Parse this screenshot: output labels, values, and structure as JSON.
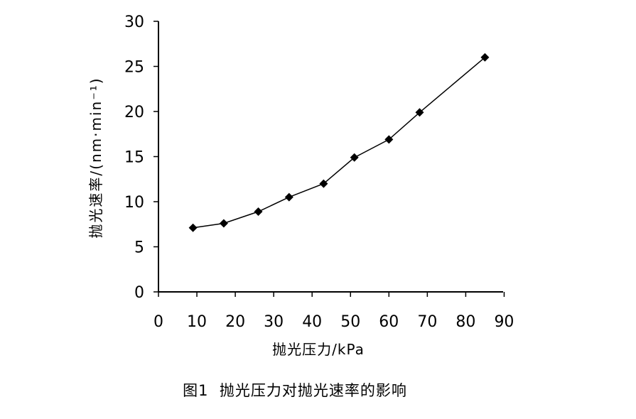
{
  "chart_data": {
    "type": "line",
    "x": [
      9,
      17,
      26,
      34,
      43,
      51,
      60,
      68,
      85
    ],
    "series": [
      {
        "values": [
          7.1,
          7.6,
          8.9,
          10.5,
          12.0,
          14.9,
          16.9,
          19.9,
          26.0
        ]
      }
    ],
    "xlabel": "抛光压力/kPa",
    "ylabel": "抛光速率/(nm·min⁻¹)",
    "xlim": [
      0,
      90
    ],
    "ylim": [
      0,
      30
    ],
    "xticks": [
      0,
      10,
      20,
      30,
      40,
      50,
      60,
      70,
      80,
      90
    ],
    "yticks": [
      0,
      5,
      10,
      15,
      20,
      25,
      30
    ],
    "marker": "diamond",
    "grid": false,
    "line_color": "#000000"
  },
  "caption": "图1  抛光压力对抛光速率的影响"
}
